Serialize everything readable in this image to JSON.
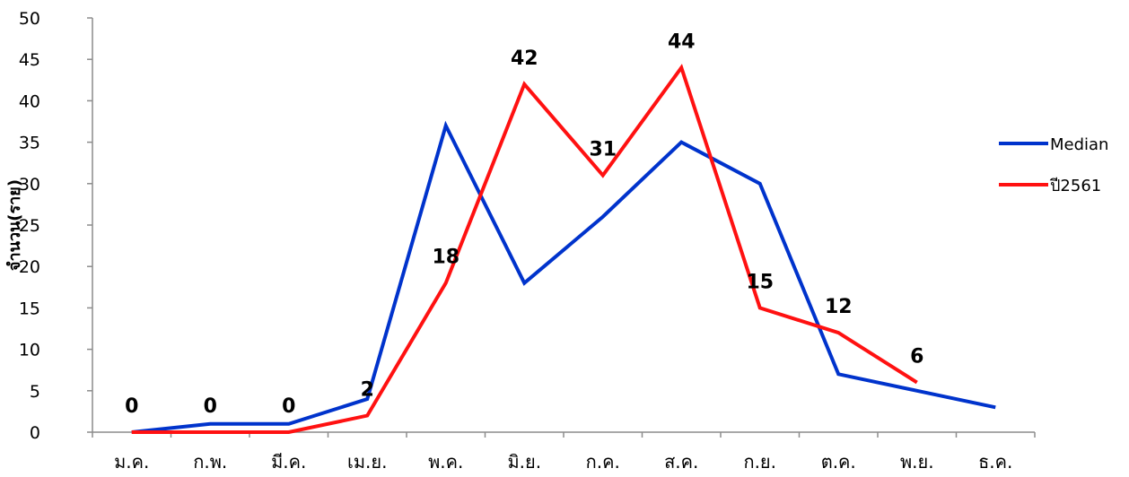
{
  "chart_data": {
    "type": "line",
    "categories": [
      "ม.ค.",
      "ก.พ.",
      "มี.ค.",
      "เม.ย.",
      "พ.ค.",
      "มิ.ย.",
      "ก.ค.",
      "ส.ค.",
      "ก.ย.",
      "ต.ค.",
      "พ.ย.",
      "ธ.ค."
    ],
    "ylabel": "จำนวน(ราย)",
    "ylim": [
      0,
      50
    ],
    "yticks": [
      0,
      5,
      10,
      15,
      20,
      25,
      30,
      35,
      40,
      45,
      50
    ],
    "grid": false,
    "legend_position": "right",
    "series": [
      {
        "name": "Median",
        "color": "#0033cc",
        "values": [
          0,
          1,
          1,
          4,
          37,
          18,
          26,
          35,
          30,
          7,
          5,
          3
        ],
        "data_labels": false
      },
      {
        "name": "ปี2561",
        "color": "#ff1111",
        "values": [
          0,
          0,
          0,
          2,
          18,
          42,
          31,
          44,
          15,
          12,
          6,
          null
        ],
        "data_labels": true
      }
    ]
  }
}
